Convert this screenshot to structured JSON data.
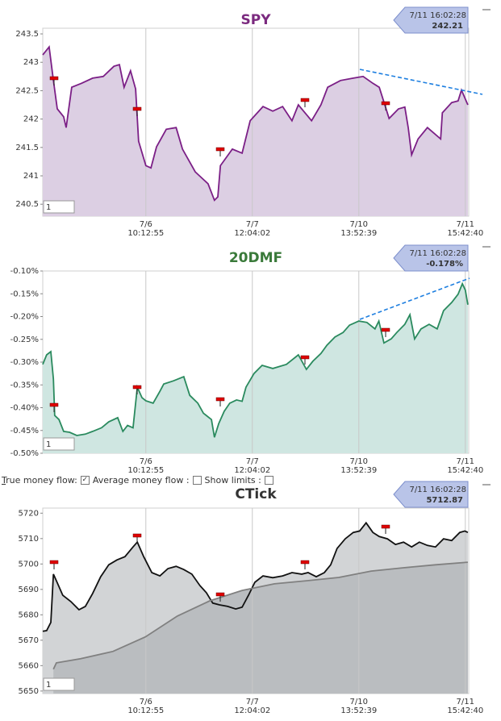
{
  "chart_data": [
    {
      "type": "line",
      "title": "SPY",
      "title_color": "#7b2a7f",
      "input_value": "1",
      "callout": {
        "time": "7/11 16:02:28",
        "value": 242.21
      },
      "xlim": [
        0,
        100
      ],
      "xticks": [
        {
          "value": 24.2,
          "label": "7/6",
          "time": "10:12:55"
        },
        {
          "value": 49.2,
          "label": "7/7",
          "time": "12:04:02"
        },
        {
          "value": 74.2,
          "label": "7/10",
          "time": "13:52:39"
        },
        {
          "value": 99.2,
          "label": "7/11",
          "time": "15:42:40"
        }
      ],
      "ylim": [
        240.29,
        243.6
      ],
      "yticks": [
        240.5,
        241,
        241.5,
        242,
        242.5,
        243,
        243.5
      ],
      "series": [
        {
          "color": "#7b1f86",
          "fill": "#dccfe3",
          "x": [
            0,
            1.5,
            2.5,
            3.4,
            4.9,
            5.5,
            6.8,
            9.1,
            11.7,
            14.2,
            16.7,
            18.0,
            19.1,
            20.6,
            21.8,
            22.5,
            24.2,
            25.4,
            26.7,
            29.0,
            31.3,
            32.8,
            35.8,
            38.8,
            40.3,
            41.1,
            41.7,
            44.5,
            46.8,
            48.7,
            51.7,
            54.0,
            56.3,
            58.5,
            60.0,
            63.1,
            65.3,
            66.9,
            69.9,
            72.9,
            75.2,
            77.5,
            79.0,
            81.3,
            83.5,
            85.0,
            85.8,
            86.6,
            88.1,
            90.3,
            93.4,
            93.8,
            96.0,
            97.5,
            98.3,
            99.8
          ],
          "values": [
            243.13,
            243.27,
            242.68,
            242.18,
            242.04,
            241.85,
            242.56,
            242.63,
            242.72,
            242.75,
            242.93,
            242.96,
            242.56,
            242.85,
            242.53,
            241.61,
            241.18,
            241.14,
            241.51,
            241.82,
            241.85,
            241.47,
            241.07,
            240.86,
            240.57,
            240.63,
            241.18,
            241.47,
            241.4,
            241.97,
            242.22,
            242.14,
            242.22,
            241.97,
            242.25,
            241.97,
            242.25,
            242.56,
            242.68,
            242.72,
            242.75,
            242.63,
            242.56,
            242.01,
            242.18,
            242.21,
            241.85,
            241.37,
            241.65,
            241.85,
            241.65,
            242.11,
            242.29,
            242.32,
            242.51,
            242.25
          ]
        }
      ]
    },
    {
      "type": "line",
      "title": "20DMF",
      "title_color": "#3a7a3a",
      "input_value": "1",
      "callout": {
        "time": "7/11 16:02:28",
        "value": {
          "value": -0.178,
          "label": "-0.178%"
        }
      },
      "xlim": [
        0,
        100
      ],
      "xticks": [
        {
          "value": 24.2,
          "label": "7/6",
          "time": "10:12:55"
        },
        {
          "value": 49.2,
          "label": "7/7",
          "time": "12:04:02"
        },
        {
          "value": 74.2,
          "label": "7/10",
          "time": "13:52:39"
        },
        {
          "value": 99.2,
          "label": "7/11",
          "time": "15:42:40"
        }
      ],
      "ylim": [
        -0.5,
        -0.1
      ],
      "yticks": [
        {
          "value": -0.5,
          "label": "-0.50%"
        },
        {
          "value": -0.45,
          "label": "-0.45%"
        },
        {
          "value": -0.4,
          "label": "-0.40%"
        },
        {
          "value": -0.35,
          "label": "-0.35%"
        },
        {
          "value": -0.3,
          "label": "-0.30%"
        },
        {
          "value": -0.25,
          "label": "-0.25%"
        },
        {
          "value": -0.2,
          "label": "-0.20%"
        },
        {
          "value": -0.15,
          "label": "-0.15%"
        },
        {
          "value": -0.1,
          "label": "-0.10%"
        }
      ],
      "series": [
        {
          "color": "#2a8a5e",
          "fill": "#cfe6e1",
          "x": [
            0,
            0.9,
            1.9,
            2.5,
            2.8,
            3.8,
            4.9,
            6.3,
            8.0,
            10.0,
            11.7,
            13.8,
            15.5,
            17.6,
            18.8,
            19.9,
            21.2,
            22.2,
            23.3,
            24.2,
            25.9,
            27.5,
            28.4,
            30.7,
            33.1,
            34.5,
            36.4,
            37.7,
            39.6,
            40.3,
            41.3,
            42.6,
            43.9,
            45.5,
            46.8,
            47.7,
            49.6,
            51.5,
            54.0,
            57.2,
            60.0,
            61.9,
            63.4,
            65.3,
            66.7,
            68.6,
            70.5,
            72.0,
            74.2,
            76.1,
            78.0,
            78.9,
            80.1,
            81.8,
            83.1,
            85.0,
            86.2,
            87.3,
            88.8,
            90.7,
            92.6,
            94.1,
            96.0,
            97.5,
            98.5,
            99.2,
            99.8
          ],
          "values": [
            -0.305,
            -0.284,
            -0.277,
            -0.337,
            -0.417,
            -0.426,
            -0.452,
            -0.454,
            -0.461,
            -0.458,
            -0.452,
            -0.444,
            -0.431,
            -0.422,
            -0.452,
            -0.439,
            -0.444,
            -0.355,
            -0.378,
            -0.385,
            -0.39,
            -0.364,
            -0.348,
            -0.341,
            -0.332,
            -0.373,
            -0.39,
            -0.412,
            -0.426,
            -0.465,
            -0.435,
            -0.408,
            -0.39,
            -0.383,
            -0.386,
            -0.355,
            -0.325,
            -0.307,
            -0.314,
            -0.305,
            -0.284,
            -0.316,
            -0.298,
            -0.281,
            -0.263,
            -0.245,
            -0.235,
            -0.219,
            -0.21,
            -0.213,
            -0.227,
            -0.21,
            -0.258,
            -0.249,
            -0.235,
            -0.217,
            -0.196,
            -0.249,
            -0.227,
            -0.217,
            -0.227,
            -0.187,
            -0.169,
            -0.151,
            -0.128,
            -0.142,
            -0.174
          ]
        }
      ]
    },
    {
      "type": "line",
      "title": "CTick",
      "title_color": "#333333",
      "input_value": "1",
      "callout": {
        "time": "7/11 16:02:28",
        "value": 5712.87
      },
      "xlim": [
        0,
        100
      ],
      "xticks": [
        {
          "value": 24.2,
          "label": "7/6",
          "time": "10:12:55"
        },
        {
          "value": 49.2,
          "label": "7/7",
          "time": "12:04:02"
        },
        {
          "value": 74.2,
          "label": "7/10",
          "time": "13:52:39"
        },
        {
          "value": 99.2,
          "label": "7/11",
          "time": "15:42:40"
        }
      ],
      "ylim": [
        5649,
        5722
      ],
      "yticks": [
        5650,
        5660,
        5670,
        5680,
        5690,
        5700,
        5710,
        5720
      ],
      "series": [
        {
          "color": "#111111",
          "fill": "#d2d4d6",
          "x": [
            0,
            0.9,
            1.9,
            2.5,
            3.2,
            4.7,
            6.6,
            8.5,
            10.0,
            11.7,
            13.6,
            15.5,
            17.4,
            19.3,
            21.2,
            22.2,
            23.7,
            25.6,
            27.5,
            29.4,
            31.3,
            33.1,
            35.0,
            36.9,
            38.4,
            39.9,
            41.5,
            43.4,
            45.3,
            46.8,
            48.3,
            49.8,
            51.7,
            54.0,
            56.3,
            58.5,
            60.8,
            62.3,
            64.2,
            66.1,
            67.6,
            69.1,
            71.0,
            72.9,
            74.4,
            75.9,
            77.5,
            79.0,
            80.9,
            82.8,
            84.7,
            86.6,
            88.4,
            90.3,
            92.2,
            94.1,
            96.0,
            97.9,
            99.1,
            99.8
          ],
          "values": [
            5673.5,
            5673.8,
            5677.0,
            5696.0,
            5693.4,
            5687.7,
            5685.2,
            5682.0,
            5683.3,
            5688.4,
            5695.0,
            5699.7,
            5701.6,
            5702.9,
            5706.7,
            5708.6,
            5702.9,
            5696.6,
            5695.3,
            5698.2,
            5699.1,
            5697.8,
            5696.0,
            5691.5,
            5688.7,
            5684.6,
            5683.9,
            5683.3,
            5682.3,
            5683.0,
            5687.7,
            5692.8,
            5695.3,
            5694.6,
            5695.3,
            5696.6,
            5696.0,
            5696.6,
            5695.0,
            5696.6,
            5699.7,
            5706.1,
            5709.9,
            5712.4,
            5713.0,
            5716.2,
            5712.4,
            5710.8,
            5709.9,
            5707.7,
            5708.6,
            5706.7,
            5708.6,
            5707.3,
            5706.7,
            5709.9,
            5709.2,
            5712.4,
            5713.0,
            5712.4
          ]
        },
        {
          "color": "#808080",
          "fill": "#babdc0",
          "x": [
            2.5,
            3.2,
            8.9,
            16.5,
            24.1,
            31.6,
            39.2,
            46.8,
            54.4,
            61.9,
            69.5,
            77.1,
            84.7,
            92.2,
            99.8
          ],
          "values": [
            5658.6,
            5661.1,
            5662.7,
            5665.6,
            5671.3,
            5679.5,
            5685.5,
            5689.6,
            5692.2,
            5693.4,
            5694.7,
            5697.2,
            5698.5,
            5699.7,
            5700.7
          ]
        }
      ]
    }
  ],
  "controls": [
    {
      "label": "True money flow:",
      "checked": true
    },
    {
      "label": "Average money flow :",
      "checked": false
    },
    {
      "label": "Show limits :",
      "checked": false
    }
  ]
}
